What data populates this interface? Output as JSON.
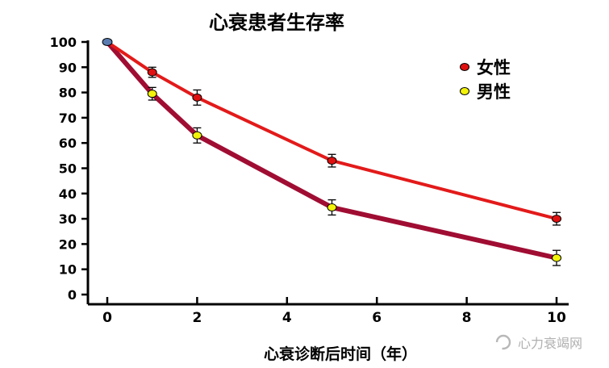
{
  "chart_data": {
    "type": "line",
    "title": "心衰患者生存率",
    "xlabel": "心衰诊断后时间（年）",
    "ylabel": "",
    "xlim": [
      0,
      10
    ],
    "ylim": [
      0,
      100
    ],
    "x_ticks": [
      0,
      2,
      4,
      6,
      8,
      10
    ],
    "y_ticks": [
      0,
      10,
      20,
      30,
      40,
      50,
      60,
      70,
      80,
      90,
      100
    ],
    "grid": false,
    "legend_position": "top-right",
    "start_point": {
      "x": 0,
      "y": 100,
      "color": "#5a7bb0"
    },
    "series": [
      {
        "name": "女性",
        "line_color": "#e31a1a",
        "marker_color": "#e01010",
        "x": [
          0,
          1,
          2,
          5,
          10
        ],
        "y": [
          100,
          88,
          78,
          53,
          30
        ],
        "error": [
          0,
          2,
          3,
          2.5,
          2.5
        ]
      },
      {
        "name": "男性",
        "line_color": "#a00d33",
        "marker_color": "#f2f20a",
        "x": [
          0,
          1,
          2,
          5,
          10
        ],
        "y": [
          100,
          79.5,
          63,
          34.5,
          14.5
        ],
        "error": [
          0,
          2.5,
          3,
          3,
          3
        ]
      }
    ]
  },
  "watermark": {
    "text": "心力衰竭网"
  }
}
